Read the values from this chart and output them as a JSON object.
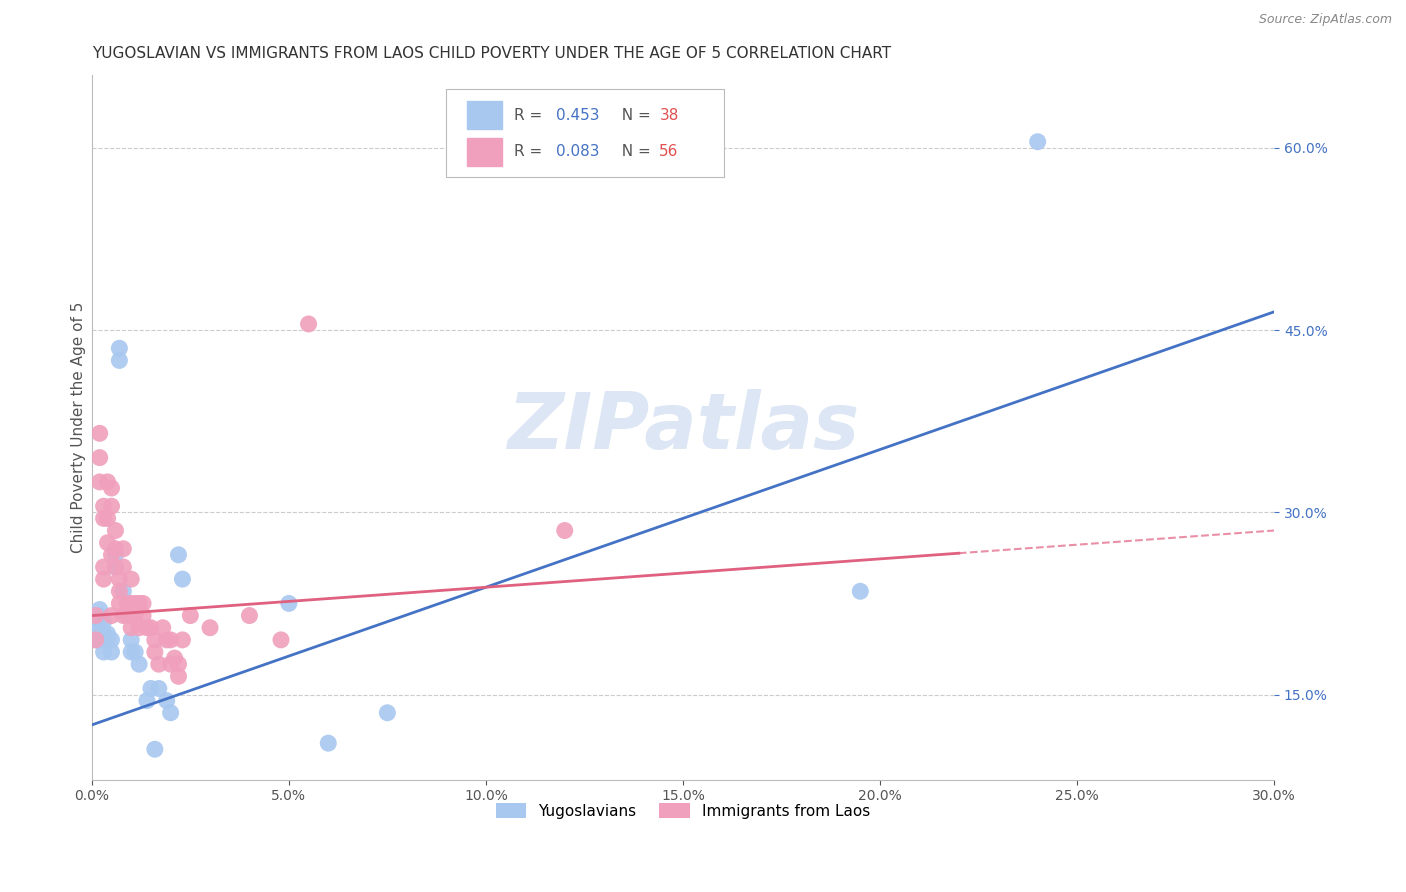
{
  "title": "YUGOSLAVIAN VS IMMIGRANTS FROM LAOS CHILD POVERTY UNDER THE AGE OF 5 CORRELATION CHART",
  "source": "Source: ZipAtlas.com",
  "ylabel": "Child Poverty Under the Age of 5",
  "xlim": [
    0.0,
    0.3
  ],
  "ylim": [
    0.08,
    0.66
  ],
  "yticks": [
    0.15,
    0.3,
    0.45,
    0.6
  ],
  "xticks": [
    0.0,
    0.05,
    0.1,
    0.15,
    0.2,
    0.25,
    0.3
  ],
  "grid_color": "#cccccc",
  "background_color": "#ffffff",
  "series": [
    {
      "label": "Yugoslavians",
      "R": 0.453,
      "N": 38,
      "color": "#a8c8f0",
      "line_color": "#4472c4",
      "line_style": "solid",
      "x": [
        0.001,
        0.001,
        0.001,
        0.002,
        0.002,
        0.002,
        0.002,
        0.003,
        0.003,
        0.003,
        0.003,
        0.004,
        0.004,
        0.005,
        0.005,
        0.006,
        0.006,
        0.007,
        0.007,
        0.008,
        0.009,
        0.01,
        0.01,
        0.011,
        0.012,
        0.014,
        0.015,
        0.016,
        0.017,
        0.019,
        0.02,
        0.022,
        0.023,
        0.05,
        0.06,
        0.075,
        0.195,
        0.24
      ],
      "y": [
        0.215,
        0.205,
        0.195,
        0.22,
        0.215,
        0.205,
        0.195,
        0.21,
        0.2,
        0.195,
        0.185,
        0.2,
        0.195,
        0.195,
        0.185,
        0.265,
        0.255,
        0.435,
        0.425,
        0.235,
        0.215,
        0.195,
        0.185,
        0.185,
        0.175,
        0.145,
        0.155,
        0.105,
        0.155,
        0.145,
        0.135,
        0.265,
        0.245,
        0.225,
        0.11,
        0.135,
        0.235,
        0.605
      ],
      "trend_x": [
        0.0,
        0.3
      ],
      "trend_y": [
        0.125,
        0.465
      ]
    },
    {
      "label": "Immigrants from Laos",
      "R": 0.083,
      "N": 56,
      "color": "#f0a0bc",
      "line_color": "#e06080",
      "line_style": "solid",
      "line_dashed_after": 0.22,
      "x": [
        0.001,
        0.001,
        0.002,
        0.002,
        0.002,
        0.003,
        0.003,
        0.003,
        0.003,
        0.004,
        0.004,
        0.004,
        0.005,
        0.005,
        0.005,
        0.005,
        0.006,
        0.006,
        0.006,
        0.007,
        0.007,
        0.007,
        0.008,
        0.008,
        0.008,
        0.009,
        0.009,
        0.01,
        0.01,
        0.01,
        0.01,
        0.011,
        0.011,
        0.012,
        0.012,
        0.013,
        0.013,
        0.014,
        0.015,
        0.016,
        0.016,
        0.017,
        0.018,
        0.019,
        0.02,
        0.02,
        0.021,
        0.022,
        0.022,
        0.023,
        0.025,
        0.03,
        0.04,
        0.048,
        0.055,
        0.12
      ],
      "y": [
        0.215,
        0.195,
        0.365,
        0.345,
        0.325,
        0.305,
        0.295,
        0.255,
        0.245,
        0.325,
        0.295,
        0.275,
        0.32,
        0.305,
        0.265,
        0.215,
        0.285,
        0.27,
        0.255,
        0.245,
        0.235,
        0.225,
        0.27,
        0.255,
        0.215,
        0.225,
        0.215,
        0.245,
        0.225,
        0.215,
        0.205,
        0.225,
        0.215,
        0.225,
        0.205,
        0.225,
        0.215,
        0.205,
        0.205,
        0.195,
        0.185,
        0.175,
        0.205,
        0.195,
        0.195,
        0.175,
        0.18,
        0.175,
        0.165,
        0.195,
        0.215,
        0.205,
        0.215,
        0.195,
        0.455,
        0.285
      ],
      "trend_x": [
        0.0,
        0.3
      ],
      "trend_y": [
        0.215,
        0.285
      ]
    }
  ],
  "legend_R_color": "#4472c4",
  "legend_N_color": "#e05050",
  "watermark_text": "ZIPatlas",
  "watermark_color": "#dce6f4",
  "title_fontsize": 11,
  "axis_label_fontsize": 11,
  "tick_fontsize": 10,
  "right_tick_color": "#4472c4",
  "source_color": "#888888"
}
